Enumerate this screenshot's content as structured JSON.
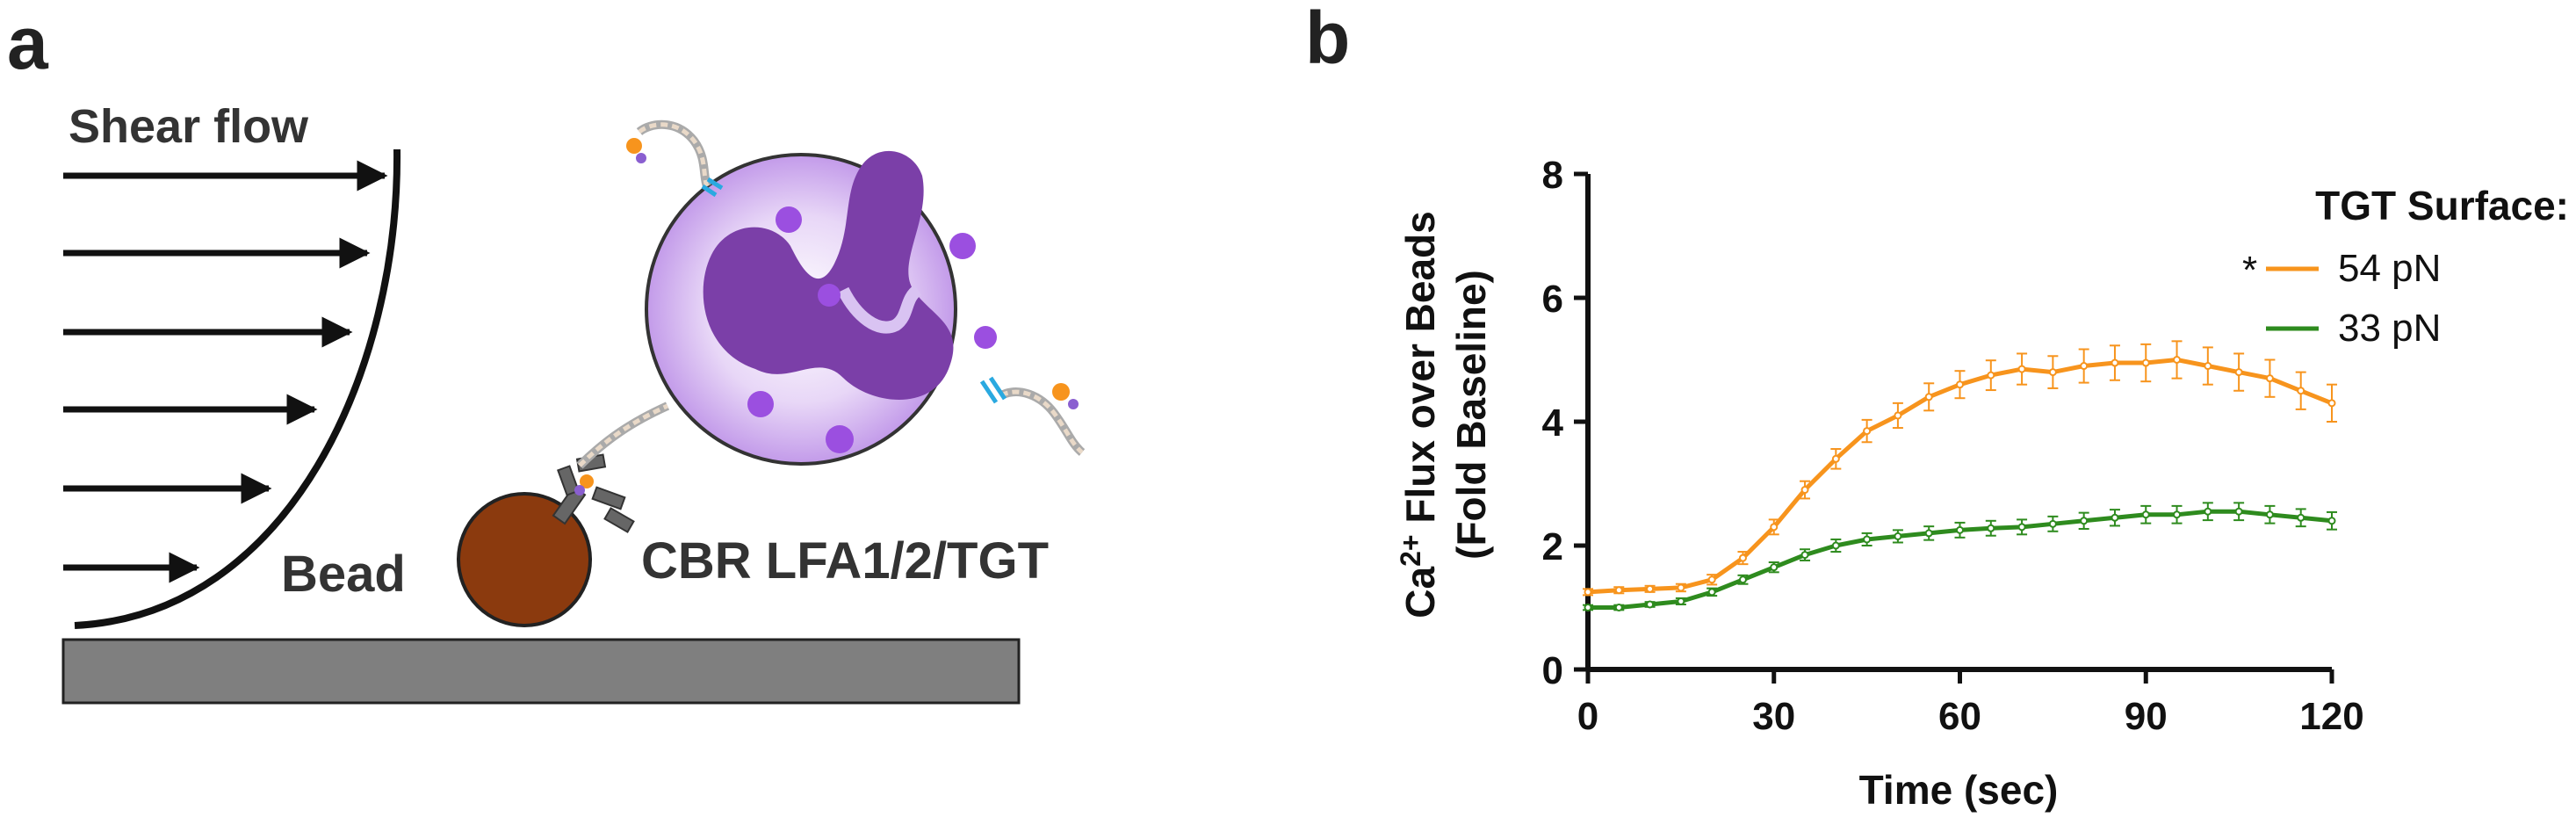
{
  "panel_a": {
    "letter": "a",
    "shear_label": "Shear flow",
    "bead_label": "Bead",
    "construct_label": "CBR LFA1/2/TGT"
  },
  "panel_b": {
    "letter": "b",
    "ylabel_line1_prefix": "Ca",
    "ylabel_line1_sup": "2+",
    "ylabel_line1_suffix": " Flux over Beads",
    "ylabel_line2": "(Fold Baseline)",
    "xlabel": "Time (sec)",
    "legend_title": "TGT Surface:",
    "significance_marker": "*",
    "colors": {
      "series1": "#F7941D",
      "series2": "#2E8B1E"
    }
  },
  "chart_data": {
    "type": "line",
    "xlabel": "Time (sec)",
    "ylabel": "Ca2+ Flux over Beads (Fold Baseline)",
    "xlim": [
      0,
      120
    ],
    "ylim": [
      0,
      8
    ],
    "xticks": [
      0,
      30,
      60,
      90,
      120
    ],
    "yticks": [
      0,
      2,
      4,
      6,
      8
    ],
    "legend_title": "TGT Surface:",
    "legend_position": "top-right",
    "grid": false,
    "error_bars": true,
    "series": [
      {
        "name": "54 pN",
        "color": "#F7941D",
        "x": [
          0,
          5,
          10,
          15,
          20,
          25,
          30,
          35,
          40,
          45,
          50,
          55,
          60,
          65,
          70,
          75,
          80,
          85,
          90,
          95,
          100,
          105,
          110,
          115,
          120
        ],
        "y": [
          1.25,
          1.28,
          1.3,
          1.32,
          1.45,
          1.8,
          2.3,
          2.9,
          3.4,
          3.85,
          4.1,
          4.4,
          4.6,
          4.75,
          4.85,
          4.8,
          4.9,
          4.95,
          4.95,
          5.0,
          4.9,
          4.8,
          4.7,
          4.5,
          4.3
        ],
        "err": [
          0.05,
          0.05,
          0.05,
          0.06,
          0.08,
          0.1,
          0.12,
          0.14,
          0.16,
          0.18,
          0.2,
          0.22,
          0.22,
          0.24,
          0.25,
          0.26,
          0.27,
          0.28,
          0.3,
          0.3,
          0.3,
          0.3,
          0.3,
          0.3,
          0.3
        ]
      },
      {
        "name": "33 pN",
        "color": "#2E8B1E",
        "x": [
          0,
          5,
          10,
          15,
          20,
          25,
          30,
          35,
          40,
          45,
          50,
          55,
          60,
          65,
          70,
          75,
          80,
          85,
          90,
          95,
          100,
          105,
          110,
          115,
          120
        ],
        "y": [
          1.0,
          1.0,
          1.05,
          1.1,
          1.25,
          1.45,
          1.65,
          1.85,
          2.0,
          2.1,
          2.15,
          2.2,
          2.25,
          2.28,
          2.3,
          2.35,
          2.4,
          2.45,
          2.5,
          2.5,
          2.55,
          2.55,
          2.5,
          2.45,
          2.4
        ],
        "err": [
          0.04,
          0.04,
          0.04,
          0.05,
          0.06,
          0.07,
          0.08,
          0.09,
          0.1,
          0.1,
          0.1,
          0.11,
          0.12,
          0.12,
          0.12,
          0.12,
          0.13,
          0.13,
          0.14,
          0.14,
          0.14,
          0.14,
          0.14,
          0.14,
          0.14
        ]
      }
    ]
  }
}
